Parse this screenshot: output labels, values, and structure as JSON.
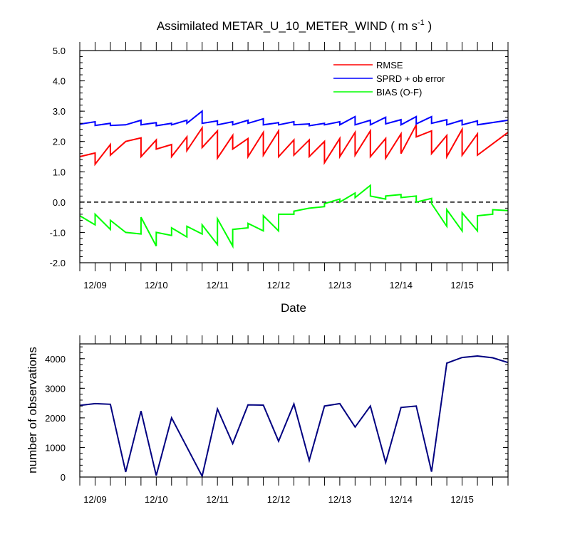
{
  "chart_data": [
    {
      "type": "line",
      "title": "Assimilated METAR_U_10_METER_WIND ( m s",
      "title_unit_exponent": "-1",
      "title_close": " )",
      "xlabel": "Date",
      "ylabel": "",
      "ylim": [
        -2.0,
        5.0
      ],
      "yticks": [
        -2.0,
        -1.0,
        0.0,
        1.0,
        2.0,
        3.0,
        4.0,
        5.0
      ],
      "ytick_labels": [
        "-2.0",
        "-1.0",
        "0.0",
        "1.0",
        "2.0",
        "3.0",
        "4.0",
        "5.0"
      ],
      "x_range_days": [
        0,
        7
      ],
      "x_tick_positions_days": [
        0.25,
        1.25,
        2.25,
        3.25,
        4.25,
        5.25,
        6.25
      ],
      "x_tick_labels": [
        "12/09",
        "12/10",
        "12/11",
        "12/12",
        "12/13",
        "12/14",
        "12/15"
      ],
      "reference_line_y": 0.0,
      "legend_position": "top-right",
      "series": [
        {
          "name": "RMSE",
          "color": "#ff0000",
          "points": [
            [
              0.0,
              1.5
            ],
            [
              0.25,
              1.62
            ],
            [
              0.25,
              1.25
            ],
            [
              0.5,
              1.9
            ],
            [
              0.5,
              1.55
            ],
            [
              0.75,
              2.0
            ],
            [
              1.0,
              2.12
            ],
            [
              1.0,
              1.5
            ],
            [
              1.25,
              2.05
            ],
            [
              1.25,
              1.75
            ],
            [
              1.5,
              1.9
            ],
            [
              1.5,
              1.5
            ],
            [
              1.75,
              2.15
            ],
            [
              1.75,
              1.7
            ],
            [
              2.0,
              2.45
            ],
            [
              2.0,
              1.8
            ],
            [
              2.25,
              2.35
            ],
            [
              2.25,
              1.45
            ],
            [
              2.5,
              2.2
            ],
            [
              2.5,
              1.75
            ],
            [
              2.75,
              2.1
            ],
            [
              2.75,
              1.5
            ],
            [
              3.0,
              2.3
            ],
            [
              3.0,
              1.55
            ],
            [
              3.25,
              2.35
            ],
            [
              3.25,
              1.5
            ],
            [
              3.5,
              2.05
            ],
            [
              3.5,
              1.55
            ],
            [
              3.75,
              2.05
            ],
            [
              3.75,
              1.5
            ],
            [
              4.0,
              2.0
            ],
            [
              4.0,
              1.3
            ],
            [
              4.25,
              2.1
            ],
            [
              4.25,
              1.5
            ],
            [
              4.5,
              2.3
            ],
            [
              4.5,
              1.55
            ],
            [
              4.75,
              2.35
            ],
            [
              4.75,
              1.5
            ],
            [
              5.0,
              2.1
            ],
            [
              5.0,
              1.45
            ],
            [
              5.25,
              2.25
            ],
            [
              5.25,
              1.6
            ],
            [
              5.5,
              2.55
            ],
            [
              5.5,
              2.15
            ],
            [
              5.75,
              2.35
            ],
            [
              5.75,
              1.6
            ],
            [
              6.0,
              2.2
            ],
            [
              6.0,
              1.5
            ],
            [
              6.25,
              2.4
            ],
            [
              6.25,
              1.55
            ],
            [
              6.5,
              2.25
            ],
            [
              6.5,
              1.55
            ],
            [
              7.0,
              2.3
            ]
          ]
        },
        {
          "name": "SPRD + ob error",
          "color": "#0000ff",
          "points": [
            [
              0.0,
              2.57
            ],
            [
              0.25,
              2.65
            ],
            [
              0.25,
              2.53
            ],
            [
              0.5,
              2.6
            ],
            [
              0.5,
              2.53
            ],
            [
              0.75,
              2.55
            ],
            [
              1.0,
              2.7
            ],
            [
              1.0,
              2.55
            ],
            [
              1.25,
              2.62
            ],
            [
              1.25,
              2.52
            ],
            [
              1.5,
              2.6
            ],
            [
              1.5,
              2.55
            ],
            [
              1.75,
              2.7
            ],
            [
              1.75,
              2.6
            ],
            [
              2.0,
              3.0
            ],
            [
              2.0,
              2.6
            ],
            [
              2.25,
              2.68
            ],
            [
              2.25,
              2.55
            ],
            [
              2.5,
              2.65
            ],
            [
              2.5,
              2.55
            ],
            [
              2.75,
              2.7
            ],
            [
              2.75,
              2.6
            ],
            [
              3.0,
              2.75
            ],
            [
              3.0,
              2.55
            ],
            [
              3.25,
              2.62
            ],
            [
              3.25,
              2.55
            ],
            [
              3.5,
              2.65
            ],
            [
              3.5,
              2.55
            ],
            [
              3.75,
              2.58
            ],
            [
              3.75,
              2.52
            ],
            [
              4.0,
              2.6
            ],
            [
              4.0,
              2.55
            ],
            [
              4.25,
              2.65
            ],
            [
              4.25,
              2.55
            ],
            [
              4.5,
              2.82
            ],
            [
              4.5,
              2.55
            ],
            [
              4.75,
              2.7
            ],
            [
              4.75,
              2.55
            ],
            [
              5.0,
              2.8
            ],
            [
              5.0,
              2.58
            ],
            [
              5.25,
              2.72
            ],
            [
              5.25,
              2.55
            ],
            [
              5.5,
              2.82
            ],
            [
              5.5,
              2.58
            ],
            [
              5.75,
              2.82
            ],
            [
              5.75,
              2.6
            ],
            [
              6.0,
              2.72
            ],
            [
              6.0,
              2.55
            ],
            [
              6.25,
              2.7
            ],
            [
              6.25,
              2.55
            ],
            [
              6.5,
              2.68
            ],
            [
              6.5,
              2.55
            ],
            [
              7.0,
              2.7
            ]
          ]
        },
        {
          "name": "BIAS (O-F)",
          "color": "#00ff00",
          "points": [
            [
              0.0,
              -0.45
            ],
            [
              0.25,
              -0.75
            ],
            [
              0.25,
              -0.4
            ],
            [
              0.5,
              -0.9
            ],
            [
              0.5,
              -0.6
            ],
            [
              0.75,
              -1.0
            ],
            [
              1.0,
              -1.05
            ],
            [
              1.0,
              -0.5
            ],
            [
              1.25,
              -1.45
            ],
            [
              1.25,
              -1.0
            ],
            [
              1.5,
              -1.1
            ],
            [
              1.5,
              -0.85
            ],
            [
              1.75,
              -1.15
            ],
            [
              1.75,
              -0.8
            ],
            [
              2.0,
              -1.05
            ],
            [
              2.0,
              -0.75
            ],
            [
              2.25,
              -1.4
            ],
            [
              2.25,
              -0.55
            ],
            [
              2.5,
              -1.45
            ],
            [
              2.5,
              -0.9
            ],
            [
              2.75,
              -0.85
            ],
            [
              2.75,
              -0.7
            ],
            [
              3.0,
              -0.95
            ],
            [
              3.0,
              -0.45
            ],
            [
              3.25,
              -0.95
            ],
            [
              3.25,
              -0.4
            ],
            [
              3.5,
              -0.4
            ],
            [
              3.5,
              -0.3
            ],
            [
              3.75,
              -0.2
            ],
            [
              3.75,
              -0.2
            ],
            [
              4.0,
              -0.15
            ],
            [
              4.0,
              -0.05
            ],
            [
              4.25,
              0.1
            ],
            [
              4.25,
              0.0
            ],
            [
              4.5,
              0.3
            ],
            [
              4.5,
              0.15
            ],
            [
              4.75,
              0.55
            ],
            [
              4.75,
              0.2
            ],
            [
              5.0,
              0.1
            ],
            [
              5.0,
              0.2
            ],
            [
              5.25,
              0.25
            ],
            [
              5.25,
              0.15
            ],
            [
              5.5,
              0.2
            ],
            [
              5.5,
              0.0
            ],
            [
              5.75,
              0.12
            ],
            [
              5.75,
              -0.05
            ],
            [
              6.0,
              -0.8
            ],
            [
              6.0,
              -0.25
            ],
            [
              6.25,
              -0.95
            ],
            [
              6.25,
              -0.35
            ],
            [
              6.5,
              -0.95
            ],
            [
              6.5,
              -0.45
            ],
            [
              6.75,
              -0.4
            ],
            [
              6.75,
              -0.25
            ],
            [
              7.0,
              -0.28
            ]
          ]
        }
      ]
    },
    {
      "type": "line",
      "title": "",
      "xlabel": "",
      "ylabel": "number of observations",
      "ylim": [
        0,
        4500
      ],
      "yticks": [
        0,
        1000,
        2000,
        3000,
        4000
      ],
      "ytick_labels": [
        "0",
        "1000",
        "2000",
        "3000",
        "4000"
      ],
      "x_range_days": [
        0,
        7
      ],
      "x_tick_positions_days": [
        0.25,
        1.25,
        2.25,
        3.25,
        4.25,
        5.25,
        6.25
      ],
      "x_tick_labels": [
        "12/09",
        "12/10",
        "12/11",
        "12/12",
        "12/13",
        "12/14",
        "12/15"
      ],
      "series": [
        {
          "name": "number of observations",
          "color": "#000080",
          "x": [
            0.0,
            0.25,
            0.5,
            0.75,
            1.0,
            1.25,
            1.5,
            2.0,
            2.25,
            2.5,
            2.75,
            3.0,
            3.25,
            3.5,
            3.75,
            4.0,
            4.25,
            4.5,
            4.75,
            5.0,
            5.25,
            5.5,
            5.75,
            6.0,
            6.25,
            6.5,
            6.75,
            7.0
          ],
          "values": [
            2420,
            2480,
            2460,
            170,
            2230,
            50,
            2000,
            30,
            2300,
            1130,
            2440,
            2430,
            1210,
            2470,
            560,
            2400,
            2480,
            1690,
            2400,
            490,
            2350,
            2400,
            180,
            3850,
            4040,
            4090,
            4030,
            3870
          ]
        }
      ]
    }
  ]
}
